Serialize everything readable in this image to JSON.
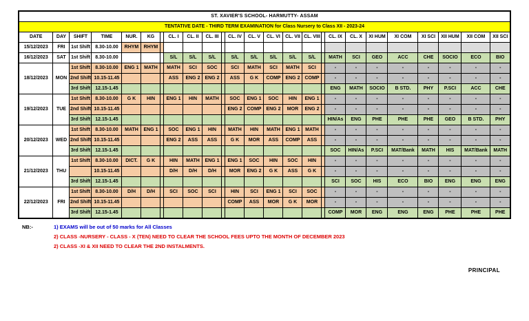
{
  "page": {
    "school_title": "ST. XAVIER'S SCHOOL- HARMUTTY- ASSAM",
    "exam_title": "TENTATIVE DATE - THIRD TERM EXAMINATION for Class Nursery to Class XII - 2023-24"
  },
  "colors": {
    "red": "#DD0000",
    "yellow": "#FFFF00",
    "peach": "#F6CBA4",
    "green": "#C9DFB0",
    "gray": "#BFBFBF",
    "lgray": "#DCDCDC",
    "blue": "#0000CC"
  },
  "table": {
    "headers": [
      "DATE",
      "DAY",
      "SHIFT",
      "TIME",
      "NUR.",
      "KG",
      "",
      "CL. I",
      "CL. II",
      "CL. III",
      "",
      "CL. IV",
      "CL. V",
      "CL. VI",
      "CL. VII",
      "CL. VIII",
      "",
      "CL. IX",
      "CL. X",
      "XI HUM",
      "XI COM",
      "XI SCI",
      "XII HUM",
      "XII COM",
      "XII SCI"
    ],
    "groups": [
      {
        "date": "15/12/2023",
        "day": "FRI",
        "rows": [
          {
            "shift": "1st Shift",
            "time": "8.30-10.00",
            "type": "fri1",
            "cells": [
              "RHYM",
              "RHYM",
              "",
              "",
              "",
              "",
              "",
              "",
              "",
              "",
              "",
              "",
              "",
              "",
              "",
              "",
              "",
              ""
            ]
          }
        ]
      },
      {
        "date": "16/12/2023",
        "day": "SAT",
        "rows": [
          {
            "shift": "1st Shift",
            "time": "8.30-10.00",
            "type": "sat1",
            "cells": [
              "",
              "",
              "S/L",
              "S/L",
              "S/L",
              "S/L",
              "S/L",
              "S/L",
              "S/L",
              "S/L",
              "MATH",
              "SCI",
              "GEO",
              "ACC",
              "CHE",
              "SOCIO",
              "ECO",
              "BIO"
            ]
          }
        ]
      },
      {
        "date": "18/12/2023",
        "day": "MON",
        "rows": [
          {
            "shift": "1st Shift",
            "time": "8.30-10.00",
            "type": "s1",
            "cells": [
              "ENG 1",
              "MATH",
              "MATH",
              "SCI",
              "SOC",
              "SCI",
              "MATH",
              "SCI",
              "MATH",
              "SCI",
              "-",
              "-",
              "-",
              "-",
              "-",
              "-",
              "-",
              "-"
            ]
          },
          {
            "shift": "2nd Shift",
            "time": "10.15-11.45",
            "type": "s2",
            "cells": [
              "",
              "",
              "ASS",
              "ENG 2",
              "ENG 2",
              "ASS",
              "G K",
              "COMP",
              "ENG 2",
              "COMP",
              "-",
              "-",
              "-",
              "-",
              "-",
              "-",
              "-",
              "-"
            ]
          },
          {
            "shift": "3rd Shift",
            "time": "12.15-1.45",
            "type": "s3",
            "cells": [
              "",
              "",
              "",
              "",
              "",
              "",
              "",
              "",
              "",
              "",
              "ENG",
              "MATH",
              "SOCIO",
              "B STD.",
              "PHY",
              "P.SCI",
              "ACC",
              "CHE"
            ]
          }
        ]
      },
      {
        "date": "19/12/2023",
        "day": "TUE",
        "rows": [
          {
            "shift": "1st Shift",
            "time": "8.30-10.00",
            "type": "s1",
            "cells": [
              "G K",
              "HIN",
              "ENG 1",
              "HIN",
              "MATH",
              "SOC",
              "ENG 1",
              "SOC",
              "HIN",
              "ENG 1",
              "-",
              "-",
              "-",
              "-",
              "-",
              "-",
              "-",
              "-"
            ]
          },
          {
            "shift": "2nd Shift",
            "time": "10.15-11.45",
            "type": "s2",
            "cells": [
              "",
              "",
              "",
              "",
              "",
              "ENG 2",
              "COMP",
              "ENG 2",
              "MOR",
              "ENG 2",
              "-",
              "-",
              "-",
              "-",
              "-",
              "-",
              "-",
              "-"
            ]
          },
          {
            "shift": "3rd Shift",
            "time": "12.15-1.45",
            "type": "s3",
            "cells": [
              "",
              "",
              "",
              "",
              "",
              "",
              "",
              "",
              "",
              "",
              "HIN/As",
              "ENG",
              "PHE",
              "PHE",
              "PHE",
              "GEO",
              "B STD.",
              "PHY"
            ]
          }
        ]
      },
      {
        "date": "20/12/2023",
        "day": "WED",
        "rows": [
          {
            "shift": "1st Shift",
            "time": "8.30-10.00",
            "type": "s1",
            "cells": [
              "MATH",
              "ENG 1",
              "SOC",
              "ENG 1",
              "HIN",
              "MATH",
              "HIN",
              "MATH",
              "ENG 1",
              "MATH",
              "-",
              "-",
              "-",
              "-",
              "-",
              "-",
              "-",
              "-"
            ]
          },
          {
            "shift": "2nd Shift",
            "time": "10.15-11.45",
            "type": "s2",
            "cells": [
              "",
              "",
              "ENG 2",
              "ASS",
              "ASS",
              "G K",
              "MOR",
              "ASS",
              "COMP",
              "ASS",
              "-",
              "-",
              "-",
              "-",
              "-",
              "-",
              "-",
              "-"
            ]
          },
          {
            "shift": "3rd Shift",
            "time": "12.15-1.45",
            "type": "s3",
            "cells": [
              "",
              "",
              "",
              "",
              "",
              "",
              "",
              "",
              "",
              "",
              "SOC",
              "HIN/As",
              "P.SCI",
              "MAT/Bank",
              "MATH",
              "HIS",
              "MAT/Bank",
              "MATH"
            ]
          }
        ]
      },
      {
        "date": "21/12/2023",
        "day": "THU",
        "rows": [
          {
            "shift": "1st Shift",
            "time": "8.30-10.00",
            "type": "s1",
            "cells": [
              "DICT.",
              "G K",
              "HIN",
              "MATH",
              "ENG 1",
              "ENG 1",
              "SOC",
              "HIN",
              "SOC",
              "HIN",
              "-",
              "-",
              "-",
              "-",
              "-",
              "-",
              "-",
              "-"
            ]
          },
          {
            "shift": "",
            "time": "10.15-11.45",
            "type": "s2",
            "cells": [
              "",
              "",
              "D/H",
              "D/H",
              "D/H",
              "MOR",
              "ENG 2",
              "G K",
              "ASS",
              "G K",
              "-",
              "-",
              "-",
              "-",
              "-",
              "-",
              "-",
              "-"
            ]
          },
          {
            "shift": "3rd Shift",
            "time": "12.15-1.45",
            "type": "s3",
            "cells": [
              "",
              "",
              "",
              "",
              "",
              "",
              "",
              "",
              "",
              "",
              "SCI",
              "SOC",
              "HIS",
              "ECO",
              "BIO",
              "ENG",
              "ENG",
              "ENG"
            ]
          }
        ]
      },
      {
        "date": "22/12/2023",
        "day": "FRI",
        "rows": [
          {
            "shift": "1st Shift",
            "time": "8.30-10.00",
            "type": "s1",
            "cells": [
              "D/H",
              "D/H",
              "SCI",
              "SOC",
              "SCI",
              "HIN",
              "SCI",
              "ENG 1",
              "SCI",
              "SOC",
              "-",
              "-",
              "-",
              "-",
              "-",
              "-",
              "-",
              "-"
            ]
          },
          {
            "shift": "2nd Shift",
            "time": "10.15-11.45",
            "type": "s2",
            "cells": [
              "",
              "",
              "",
              "",
              "",
              "COMP",
              "ASS",
              "MOR",
              "G K",
              "MOR",
              "-",
              "-",
              "-",
              "-",
              "-",
              "-",
              "-",
              "-"
            ]
          },
          {
            "shift": "3rd Shift",
            "time": "12.15-1.45",
            "type": "s3",
            "cells": [
              "",
              "",
              "",
              "",
              "",
              "",
              "",
              "",
              "",
              "",
              "COMP",
              "MOR",
              "ENG",
              "ENG",
              "ENG",
              "PHE",
              "PHE",
              "PHE"
            ]
          }
        ]
      }
    ]
  },
  "notes": {
    "label": "NB:-",
    "items": [
      {
        "text": "1) EXAMS will be out of 50 marks for All Classes",
        "color": "blue"
      },
      {
        "text": "2) CLASS -NURSERY - CLASS - X (TEN) NEED TO CLEAR THE SCHOOL FEES UPTO THE MONTH OF DECEMBER 2023",
        "color": "red"
      },
      {
        "text": "2) CLASS -XI & XII NEED TO CLEAR THE 2ND INSTALMENTS.",
        "color": "red"
      }
    ]
  },
  "principal": "PRINCIPAL"
}
